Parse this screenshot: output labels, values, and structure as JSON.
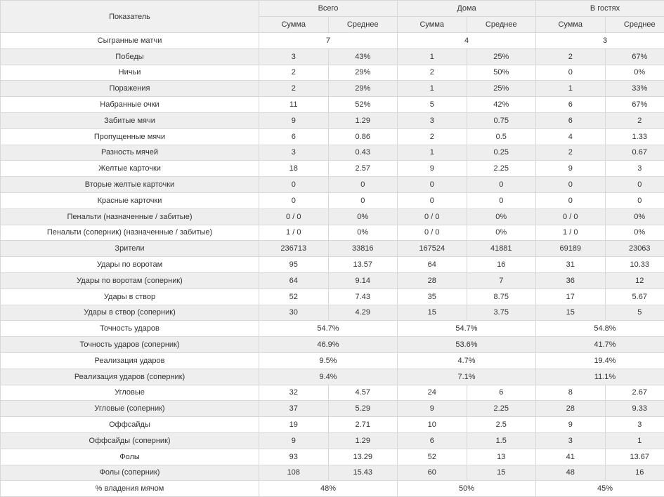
{
  "header": {
    "indicator": "Показатель",
    "groups": [
      "Всего",
      "Дома",
      "В гостях"
    ],
    "sub": [
      "Сумма",
      "Среднее"
    ]
  },
  "rows": [
    {
      "label": "Сыгранные матчи",
      "merged": true,
      "values": [
        "7",
        "4",
        "3"
      ]
    },
    {
      "label": "Победы",
      "merged": false,
      "values": [
        "3",
        "43%",
        "1",
        "25%",
        "2",
        "67%"
      ]
    },
    {
      "label": "Ничьи",
      "merged": false,
      "values": [
        "2",
        "29%",
        "2",
        "50%",
        "0",
        "0%"
      ]
    },
    {
      "label": "Поражения",
      "merged": false,
      "values": [
        "2",
        "29%",
        "1",
        "25%",
        "1",
        "33%"
      ]
    },
    {
      "label": "Набранные очки",
      "merged": false,
      "values": [
        "11",
        "52%",
        "5",
        "42%",
        "6",
        "67%"
      ]
    },
    {
      "label": "Забитые мячи",
      "merged": false,
      "values": [
        "9",
        "1.29",
        "3",
        "0.75",
        "6",
        "2"
      ]
    },
    {
      "label": "Пропущенные мячи",
      "merged": false,
      "values": [
        "6",
        "0.86",
        "2",
        "0.5",
        "4",
        "1.33"
      ]
    },
    {
      "label": "Разность мячей",
      "merged": false,
      "values": [
        "3",
        "0.43",
        "1",
        "0.25",
        "2",
        "0.67"
      ]
    },
    {
      "label": "Желтые карточки",
      "merged": false,
      "values": [
        "18",
        "2.57",
        "9",
        "2.25",
        "9",
        "3"
      ]
    },
    {
      "label": "Вторые желтые карточки",
      "merged": false,
      "values": [
        "0",
        "0",
        "0",
        "0",
        "0",
        "0"
      ]
    },
    {
      "label": "Красные карточки",
      "merged": false,
      "values": [
        "0",
        "0",
        "0",
        "0",
        "0",
        "0"
      ]
    },
    {
      "label": "Пенальти (назначенные / забитые)",
      "merged": false,
      "values": [
        "0 / 0",
        "0%",
        "0 / 0",
        "0%",
        "0 / 0",
        "0%"
      ]
    },
    {
      "label": "Пенальти (соперник) (назначенные / забитые)",
      "merged": false,
      "values": [
        "1 / 0",
        "0%",
        "0 / 0",
        "0%",
        "1 / 0",
        "0%"
      ]
    },
    {
      "label": "Зрители",
      "merged": false,
      "values": [
        "236713",
        "33816",
        "167524",
        "41881",
        "69189",
        "23063"
      ]
    },
    {
      "label": "Удары по воротам",
      "merged": false,
      "values": [
        "95",
        "13.57",
        "64",
        "16",
        "31",
        "10.33"
      ]
    },
    {
      "label": "Удары по воротам (соперник)",
      "merged": false,
      "values": [
        "64",
        "9.14",
        "28",
        "7",
        "36",
        "12"
      ]
    },
    {
      "label": "Удары в створ",
      "merged": false,
      "values": [
        "52",
        "7.43",
        "35",
        "8.75",
        "17",
        "5.67"
      ]
    },
    {
      "label": "Удары в створ (соперник)",
      "merged": false,
      "values": [
        "30",
        "4.29",
        "15",
        "3.75",
        "15",
        "5"
      ]
    },
    {
      "label": "Точность ударов",
      "merged": true,
      "values": [
        "54.7%",
        "54.7%",
        "54.8%"
      ]
    },
    {
      "label": "Точность ударов (соперник)",
      "merged": true,
      "values": [
        "46.9%",
        "53.6%",
        "41.7%"
      ]
    },
    {
      "label": "Реализация ударов",
      "merged": true,
      "values": [
        "9.5%",
        "4.7%",
        "19.4%"
      ]
    },
    {
      "label": "Реализация ударов (соперник)",
      "merged": true,
      "values": [
        "9.4%",
        "7.1%",
        "11.1%"
      ]
    },
    {
      "label": "Угловые",
      "merged": false,
      "values": [
        "32",
        "4.57",
        "24",
        "6",
        "8",
        "2.67"
      ]
    },
    {
      "label": "Угловые (соперник)",
      "merged": false,
      "values": [
        "37",
        "5.29",
        "9",
        "2.25",
        "28",
        "9.33"
      ]
    },
    {
      "label": "Оффсайды",
      "merged": false,
      "values": [
        "19",
        "2.71",
        "10",
        "2.5",
        "9",
        "3"
      ]
    },
    {
      "label": "Оффсайды (соперник)",
      "merged": false,
      "values": [
        "9",
        "1.29",
        "6",
        "1.5",
        "3",
        "1"
      ]
    },
    {
      "label": "Фолы",
      "merged": false,
      "values": [
        "93",
        "13.29",
        "52",
        "13",
        "41",
        "13.67"
      ]
    },
    {
      "label": "Фолы (соперник)",
      "merged": false,
      "values": [
        "108",
        "15.43",
        "60",
        "15",
        "48",
        "16"
      ]
    },
    {
      "label": "% владения мячом",
      "merged": true,
      "values": [
        "48%",
        "50%",
        "45%"
      ]
    }
  ]
}
